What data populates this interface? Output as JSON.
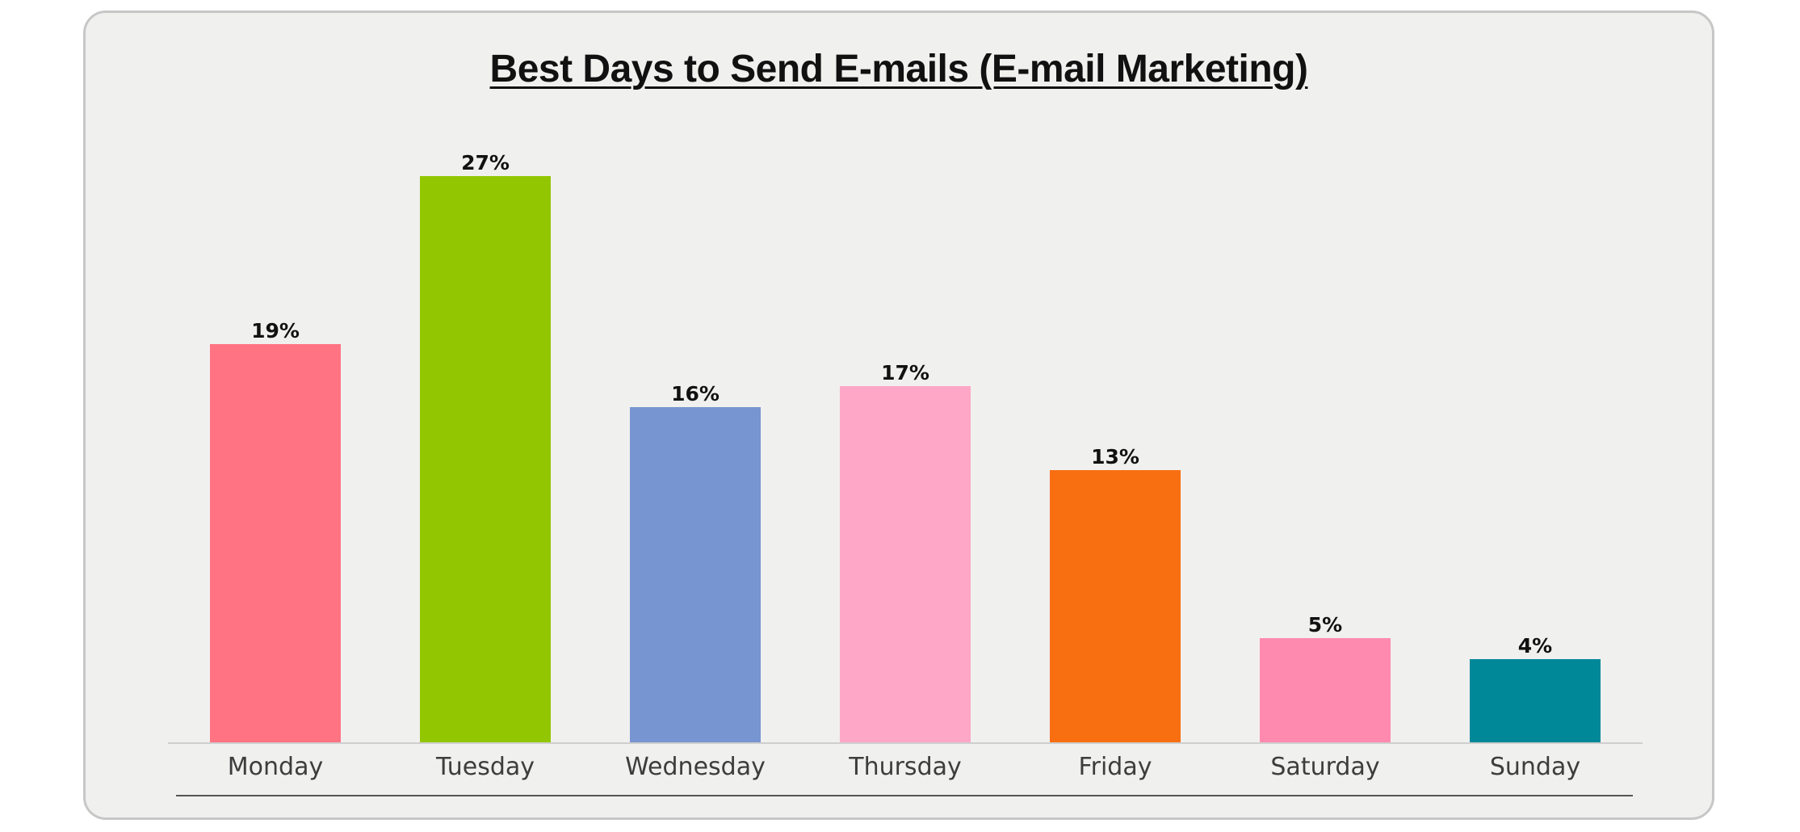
{
  "chart_data": {
    "type": "bar",
    "title": "Best Days to Send E-mails (E-mail Marketing)",
    "categories": [
      "Monday",
      "Tuesday",
      "Wednesday",
      "Thursday",
      "Friday",
      "Saturday",
      "Sunday"
    ],
    "values": [
      19,
      27,
      16,
      17,
      13,
      5,
      4
    ],
    "value_labels": [
      "19%",
      "27%",
      "16%",
      "17%",
      "13%",
      "5%",
      "4%"
    ],
    "colors": [
      "#ff7383",
      "#92c600",
      "#7795d1",
      "#ffa7c6",
      "#f86f11",
      "#ff8ab0",
      "#008899"
    ],
    "xlabel": "",
    "ylabel": "",
    "ylim": [
      0,
      30
    ],
    "grid": false,
    "legend": "none"
  }
}
